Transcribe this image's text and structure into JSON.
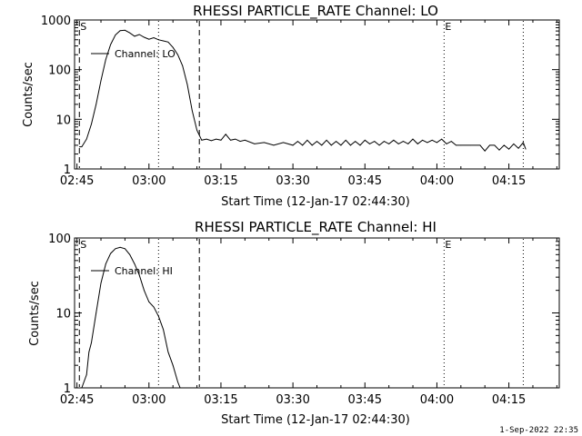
{
  "footer": {
    "date_stamp": "1-Sep-2022 22:35"
  },
  "chart_data": [
    {
      "type": "line",
      "title": "RHESSI PARTICLE_RATE Channel: LO",
      "xlabel": "Start Time (12-Jan-17 02:44:30)",
      "ylabel": "Counts/sec",
      "yscale": "log",
      "ylim": [
        1,
        1000
      ],
      "xlim": [
        "02:44:30",
        "04:25:30"
      ],
      "x_ticks": [
        "02:45",
        "03:00",
        "03:15",
        "03:30",
        "03:45",
        "04:00",
        "04:15"
      ],
      "y_ticks": [
        "1",
        "10",
        "100",
        "1000"
      ],
      "legend": {
        "label": "Channel: LO",
        "placement": "top-left"
      },
      "markers": [
        {
          "time": "02:45:30",
          "style": "dashed",
          "label": "S"
        },
        {
          "time": "03:02:00",
          "style": "dotted",
          "label": ""
        },
        {
          "time": "03:10:30",
          "style": "dashed",
          "label": ""
        },
        {
          "time": "04:01:30",
          "style": "dotted",
          "label": "E"
        },
        {
          "time": "04:18:00",
          "style": "dotted",
          "label": ""
        }
      ],
      "series": [
        {
          "values": [
            [
              "02:45:30",
              2.8
            ],
            [
              "02:46:00",
              2.8
            ],
            [
              "02:47:00",
              4
            ],
            [
              "02:48:00",
              8
            ],
            [
              "02:49:00",
              20
            ],
            [
              "02:50:00",
              60
            ],
            [
              "02:51:00",
              160
            ],
            [
              "02:52:00",
              320
            ],
            [
              "02:53:00",
              500
            ],
            [
              "02:54:00",
              610
            ],
            [
              "02:55:00",
              620
            ],
            [
              "02:56:00",
              550
            ],
            [
              "02:57:00",
              470
            ],
            [
              "02:58:00",
              510
            ],
            [
              "02:59:00",
              450
            ],
            [
              "03:00:00",
              410
            ],
            [
              "03:01:00",
              440
            ],
            [
              "03:02:00",
              400
            ],
            [
              "03:03:00",
              380
            ],
            [
              "03:04:00",
              360
            ],
            [
              "03:05:00",
              280
            ],
            [
              "03:06:00",
              200
            ],
            [
              "03:07:00",
              120
            ],
            [
              "03:08:00",
              50
            ],
            [
              "03:09:00",
              15
            ],
            [
              "03:10:00",
              6
            ],
            [
              "03:11:00",
              3.8
            ],
            [
              "03:12:00",
              4
            ],
            [
              "03:13:00",
              3.7
            ],
            [
              "03:14:00",
              4
            ],
            [
              "03:15:00",
              3.8
            ],
            [
              "03:16:00",
              5
            ],
            [
              "03:17:00",
              3.8
            ],
            [
              "03:18:00",
              4
            ],
            [
              "03:19:00",
              3.6
            ],
            [
              "03:20:00",
              3.8
            ],
            [
              "03:22:00",
              3.2
            ],
            [
              "03:24:00",
              3.4
            ],
            [
              "03:26:00",
              3.0
            ],
            [
              "03:28:00",
              3.4
            ],
            [
              "03:30:00",
              3.0
            ],
            [
              "03:31:00",
              3.6
            ],
            [
              "03:32:00",
              3.0
            ],
            [
              "03:33:00",
              3.8
            ],
            [
              "03:34:00",
              3.0
            ],
            [
              "03:35:00",
              3.6
            ],
            [
              "03:36:00",
              3.0
            ],
            [
              "03:37:00",
              3.8
            ],
            [
              "03:38:00",
              3.0
            ],
            [
              "03:39:00",
              3.6
            ],
            [
              "03:40:00",
              3.0
            ],
            [
              "03:41:00",
              3.8
            ],
            [
              "03:42:00",
              3.0
            ],
            [
              "03:43:00",
              3.6
            ],
            [
              "03:44:00",
              3.0
            ],
            [
              "03:45:00",
              3.8
            ],
            [
              "03:46:00",
              3.2
            ],
            [
              "03:47:00",
              3.6
            ],
            [
              "03:48:00",
              3.0
            ],
            [
              "03:49:00",
              3.6
            ],
            [
              "03:50:00",
              3.2
            ],
            [
              "03:51:00",
              3.8
            ],
            [
              "03:52:00",
              3.2
            ],
            [
              "03:53:00",
              3.6
            ],
            [
              "03:54:00",
              3.2
            ],
            [
              "03:55:00",
              4.0
            ],
            [
              "03:56:00",
              3.2
            ],
            [
              "03:57:00",
              3.8
            ],
            [
              "03:58:00",
              3.4
            ],
            [
              "03:59:00",
              3.8
            ],
            [
              "04:00:00",
              3.4
            ],
            [
              "04:01:00",
              4.0
            ],
            [
              "04:02:00",
              3.2
            ],
            [
              "04:03:00",
              3.6
            ],
            [
              "04:04:00",
              3.0
            ],
            [
              "04:05:00",
              3.0
            ],
            [
              "04:07:00",
              3.0
            ],
            [
              "04:09:00",
              3.0
            ],
            [
              "04:10:00",
              2.3
            ],
            [
              "04:11:00",
              3.0
            ],
            [
              "04:12:00",
              3.0
            ],
            [
              "04:13:00",
              2.4
            ],
            [
              "04:14:00",
              3.0
            ],
            [
              "04:15:00",
              2.5
            ],
            [
              "04:16:00",
              3.2
            ],
            [
              "04:17:00",
              2.6
            ],
            [
              "04:18:00",
              3.4
            ],
            [
              "04:18:30",
              2.5
            ]
          ]
        }
      ]
    },
    {
      "type": "line",
      "title": "RHESSI PARTICLE_RATE Channel: HI",
      "xlabel": "Start Time (12-Jan-17 02:44:30)",
      "ylabel": "Counts/sec",
      "yscale": "log",
      "ylim": [
        1,
        100
      ],
      "xlim": [
        "02:44:30",
        "04:25:30"
      ],
      "x_ticks": [
        "02:45",
        "03:00",
        "03:15",
        "03:30",
        "03:45",
        "04:00",
        "04:15"
      ],
      "y_ticks": [
        "1",
        "10",
        "100"
      ],
      "legend": {
        "label": "Channel: HI",
        "placement": "top-left"
      },
      "markers": [
        {
          "time": "02:45:30",
          "style": "dashed",
          "label": "S"
        },
        {
          "time": "03:02:00",
          "style": "dotted",
          "label": ""
        },
        {
          "time": "03:10:30",
          "style": "dashed",
          "label": ""
        },
        {
          "time": "04:01:30",
          "style": "dotted",
          "label": "E"
        },
        {
          "time": "04:18:00",
          "style": "dotted",
          "label": ""
        }
      ],
      "series": [
        {
          "values": [
            [
              "02:46:00",
              0.9
            ],
            [
              "02:47:00",
              1.5
            ],
            [
              "02:47:30",
              3
            ],
            [
              "02:48:00",
              4
            ],
            [
              "02:49:00",
              10
            ],
            [
              "02:50:00",
              25
            ],
            [
              "02:51:00",
              45
            ],
            [
              "02:52:00",
              62
            ],
            [
              "02:53:00",
              72
            ],
            [
              "02:54:00",
              75
            ],
            [
              "02:55:00",
              72
            ],
            [
              "02:56:00",
              60
            ],
            [
              "02:57:00",
              45
            ],
            [
              "02:58:00",
              32
            ],
            [
              "02:59:00",
              20
            ],
            [
              "03:00:00",
              14
            ],
            [
              "03:01:00",
              12
            ],
            [
              "03:02:00",
              9
            ],
            [
              "03:03:00",
              6
            ],
            [
              "03:04:00",
              3
            ],
            [
              "03:05:00",
              2
            ],
            [
              "03:06:00",
              1.2
            ],
            [
              "03:06:30",
              0.9
            ]
          ]
        }
      ]
    }
  ]
}
